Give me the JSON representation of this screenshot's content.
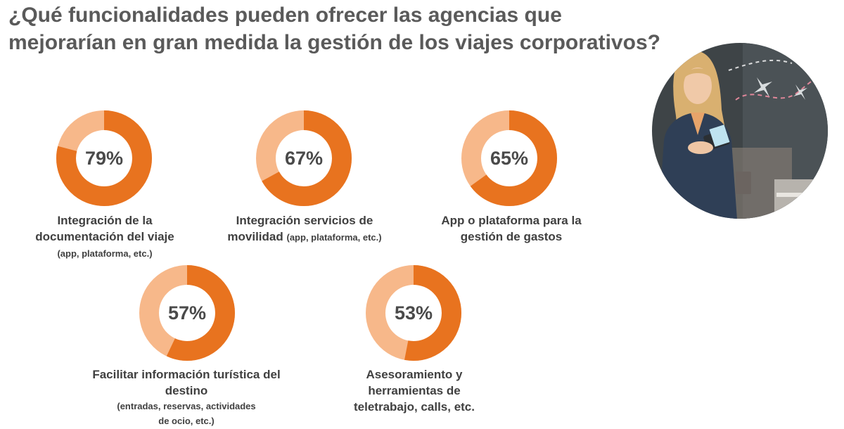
{
  "title": "¿Qué funcionalidades pueden ofrecer las agencias que mejorarían en gran medida la gestión de los viajes corporativos?",
  "colors": {
    "accent": "#e8731f",
    "track": "#f7b88a",
    "title": "#5a5a5a",
    "label": "#404040"
  },
  "items": [
    {
      "pct": "79%",
      "label_main": "Integración de la documentación del viaje",
      "label_note": "(app, plataforma, etc.)"
    },
    {
      "pct": "67%",
      "label_main": "Integración servicios de movilidad",
      "label_note": "(app, plataforma, etc.)"
    },
    {
      "pct": "65%",
      "label_main": "App o plataforma para la gestión de gastos",
      "label_note": ""
    },
    {
      "pct": "57%",
      "label_main": "Facilitar información turística del destino",
      "label_note": "(entradas, reservas, actividades de ocio, etc.)"
    },
    {
      "pct": "53%",
      "label_main": "Asesoramiento y herramientas de teletrabajo, calls, etc.",
      "label_note": ""
    }
  ],
  "chart_data": {
    "type": "pie",
    "title": "¿Qué funcionalidades pueden ofrecer las agencias que mejorarían en gran medida la gestión de los viajes corporativos?",
    "categories": [
      "Integración de la documentación del viaje (app, plataforma, etc.)",
      "Integración servicios de movilidad (app, plataforma, etc.)",
      "App o plataforma para la gestión de gastos",
      "Facilitar información turística del destino (entradas, reservas, actividades de ocio, etc.)",
      "Asesoramiento y herramientas de teletrabajo, calls, etc."
    ],
    "values": [
      79,
      67,
      65,
      57,
      53
    ],
    "unit": "%"
  }
}
